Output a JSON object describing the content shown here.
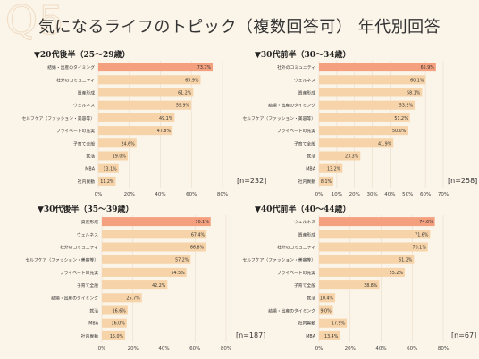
{
  "watermark": "Q5",
  "title": "気になるライフのトピック（複数回答可） 年代別回答",
  "colors": {
    "highlight": "#f4a07f",
    "bar": "#f6d3a8",
    "grid": "#e9dccb"
  },
  "chart_data": [
    {
      "type": "bar",
      "orientation": "horizontal",
      "title": "▼20代後半（25～29歳）",
      "n": "[n=232]",
      "categories": [
        "結婚・出産のタイミング",
        "社外のコミュニティ",
        "資産形成",
        "ウェルネス",
        "セルフケア（ファッション・美容等）",
        "プライベートの充実",
        "子育て全般",
        "就活",
        "MBA",
        "社内異動"
      ],
      "values": [
        73.7,
        65.9,
        61.2,
        59.9,
        49.1,
        47.8,
        24.6,
        19.0,
        13.1,
        11.2
      ],
      "value_labels": [
        "73.7%",
        "65.9%",
        "61.2%",
        "59.9%",
        "49.1%",
        "47.8%",
        "24.6%",
        "19.0%",
        "13.1%",
        "11.2%"
      ],
      "xlim": [
        0,
        80
      ],
      "xticks": [
        "0%",
        "20%",
        "40%",
        "60%",
        "80%"
      ]
    },
    {
      "type": "bar",
      "orientation": "horizontal",
      "title": "▼30代前半（30～34歳）",
      "n": "[n=258]",
      "categories": [
        "社外のコミュニティ",
        "ウェルネス",
        "資産形成",
        "結婚・出産のタイミング",
        "セルフケア（ファッション・美容等）",
        "プライベートの充実",
        "子育て全般",
        "就活",
        "MBA",
        "社内異動"
      ],
      "values": [
        65.9,
        60.1,
        58.1,
        53.9,
        51.2,
        50.0,
        41.9,
        23.3,
        13.2,
        8.1
      ],
      "value_labels": [
        "65.9%",
        "60.1%",
        "58.1%",
        "53.9%",
        "51.2%",
        "50.0%",
        "41.9%",
        "23.3%",
        "13.2%",
        "8.1%"
      ],
      "xlim": [
        0,
        70
      ],
      "xticks": [
        "0%",
        "10%",
        "20%",
        "30%",
        "40%",
        "50%",
        "60%",
        "70%"
      ]
    },
    {
      "type": "bar",
      "orientation": "horizontal",
      "title": "▼30代後半（35～39歳）",
      "n": "[n=187]",
      "categories": [
        "資産形成",
        "ウェルネス",
        "社外のコミュニティ",
        "セルフケア（ファッション・美容等）",
        "プライベートの充実",
        "子育て全般",
        "結婚・出産のタイミング",
        "就活",
        "MBA",
        "社内異動"
      ],
      "values": [
        70.1,
        67.4,
        66.8,
        57.2,
        54.5,
        42.2,
        25.7,
        16.6,
        16.0,
        15.0
      ],
      "value_labels": [
        "70.1%",
        "67.4%",
        "66.8%",
        "57.2%",
        "54.5%",
        "42.2%",
        "25.7%",
        "16.6%",
        "16.0%",
        "15.0%"
      ],
      "xlim": [
        0,
        80
      ],
      "xticks": [
        "0%",
        "20%",
        "40%",
        "60%",
        "80%"
      ]
    },
    {
      "type": "bar",
      "orientation": "horizontal",
      "title": "▼40代前半（40～44歳）",
      "n": "[n=67]",
      "categories": [
        "ウェルネス",
        "資産形成",
        "社外のコミュニティ",
        "セルフケア（ファッション・美容等）",
        "プライベートの充実",
        "子育て全般",
        "就活",
        "結婚・出産のタイミング",
        "社内異動",
        "MBA"
      ],
      "values": [
        74.6,
        71.6,
        70.1,
        61.2,
        55.2,
        38.8,
        10.4,
        9.0,
        17.9,
        13.4
      ],
      "value_labels": [
        "74.6%",
        "71.6%",
        "70.1%",
        "61.2%",
        "55.2%",
        "38.8%",
        "10.4%",
        "9.0%",
        "17.9%",
        "13.4%"
      ],
      "xlim": [
        0,
        80
      ],
      "xticks": [
        "0%",
        "20%",
        "40%",
        "60%",
        "80%"
      ]
    }
  ]
}
